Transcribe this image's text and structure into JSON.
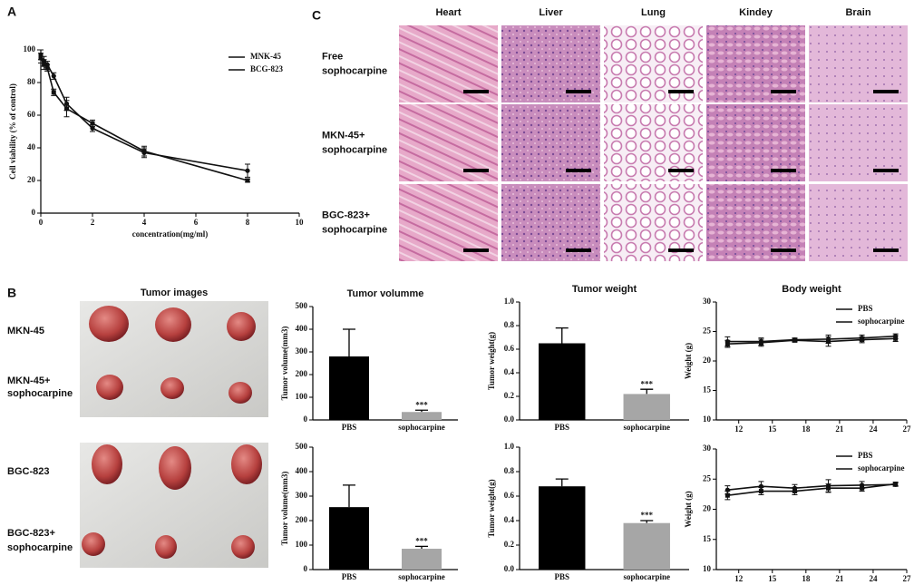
{
  "panel_labels": [
    "A",
    "B",
    "C"
  ],
  "tissue": {
    "columns": [
      "Heart",
      "Liver",
      "Lung",
      "Kindey",
      "Brain"
    ],
    "rows": [
      [
        "Free",
        "sophocarpine"
      ],
      [
        "MKN-45+",
        "sophocarpine"
      ],
      [
        "BGC-823+",
        "sophocarpine"
      ]
    ]
  },
  "tumor_images": {
    "title": "Tumor images",
    "rows": [
      [
        "MKN-45"
      ],
      [
        "MKN-45+",
        "sophocarpine"
      ],
      [
        "BGC-823"
      ],
      [
        "BGC-823+",
        "sophocarpine"
      ]
    ]
  },
  "chart_data": [
    {
      "type": "line",
      "xlabel": "concentration(mg/ml)",
      "ylabel": "Cell viability (% of control)",
      "x": [
        0,
        0.125,
        0.25,
        0.5,
        1,
        2,
        4,
        8
      ],
      "series": [
        {
          "name": "MNK-45",
          "color": "#111111",
          "marker": "circle",
          "values": [
            97,
            93,
            91,
            84,
            67,
            52,
            37,
            26
          ],
          "errors": [
            3,
            3,
            2,
            2,
            4,
            2,
            3,
            4
          ]
        },
        {
          "name": "BCG-823",
          "color": "#111111",
          "marker": "square",
          "values": [
            95,
            91,
            89,
            74,
            64,
            55,
            38,
            20
          ],
          "errors": [
            3,
            3,
            2,
            2,
            5,
            2,
            3,
            1
          ]
        }
      ],
      "xlim": [
        0,
        10
      ],
      "xticks": [
        0,
        2,
        4,
        6,
        8,
        10
      ],
      "ylim": [
        0,
        100
      ],
      "yticks": [
        0,
        20,
        40,
        60,
        80,
        100
      ],
      "legend": "upper right"
    },
    {
      "type": "bar",
      "title": "Tumor volumme",
      "ylabel": "Tumor volume(mm3)",
      "categories": [
        "PBS",
        "sophocarpine"
      ],
      "values": [
        280,
        35
      ],
      "errors": [
        120,
        8
      ],
      "colors": [
        "#000000",
        "#a6a6a6"
      ],
      "annotation": "***",
      "ylim": [
        0,
        500
      ],
      "yticks": [
        0,
        100,
        200,
        300,
        400,
        500
      ]
    },
    {
      "type": "bar",
      "title": "Tumor weight",
      "ylabel": "Tumor weight(g)",
      "categories": [
        "PBS",
        "sophocarpine"
      ],
      "values": [
        0.65,
        0.22
      ],
      "errors": [
        0.13,
        0.04
      ],
      "colors": [
        "#000000",
        "#a6a6a6"
      ],
      "annotation": "***",
      "ylim": [
        0,
        1
      ],
      "yticks": [
        {
          "value": 0,
          "label": "0.0"
        },
        0.2,
        0.4,
        0.6,
        0.8,
        {
          "value": 1,
          "label": "1.0"
        }
      ]
    },
    {
      "type": "line",
      "title": "Body weight",
      "ylabel": "Weight (g)",
      "x": [
        11,
        14,
        17,
        20,
        23,
        26
      ],
      "series": [
        {
          "name": "PBS",
          "color": "#111111",
          "marker": "circle",
          "values": [
            23.3,
            23.3,
            23.6,
            23.7,
            23.9,
            24.2
          ],
          "errors": [
            0.8,
            0.6,
            0.3,
            0.7,
            0.5,
            0.4
          ]
        },
        {
          "name": "sophocarpine",
          "color": "#111111",
          "marker": "square",
          "values": [
            22.9,
            23.1,
            23.5,
            23.3,
            23.6,
            23.8
          ],
          "errors": [
            0.6,
            0.6,
            0.3,
            0.8,
            0.5,
            0.5
          ]
        }
      ],
      "xlim": [
        10,
        27
      ],
      "xticks": [
        12,
        15,
        18,
        21,
        24,
        27
      ],
      "ylim": [
        10,
        30
      ],
      "yticks": [
        10,
        15,
        20,
        25,
        30
      ],
      "legend": "upper right"
    },
    {
      "type": "bar",
      "ylabel": "Tumor volume(mm3)",
      "categories": [
        "PBS",
        "sophocarpine"
      ],
      "values": [
        255,
        85
      ],
      "errors": [
        90,
        10
      ],
      "colors": [
        "#000000",
        "#a6a6a6"
      ],
      "annotation": "***",
      "ylim": [
        0,
        500
      ],
      "yticks": [
        0,
        100,
        200,
        300,
        400,
        500
      ]
    },
    {
      "type": "bar",
      "ylabel": "Tumor weight(g)",
      "categories": [
        "PBS",
        "sophocarpine"
      ],
      "values": [
        0.68,
        0.38
      ],
      "errors": [
        0.06,
        0.02
      ],
      "colors": [
        "#000000",
        "#a6a6a6"
      ],
      "annotation": "***",
      "ylim": [
        0,
        1
      ],
      "yticks": [
        {
          "value": 0,
          "label": "0.0"
        },
        0.2,
        0.4,
        0.6,
        0.8,
        {
          "value": 1,
          "label": "1.0"
        }
      ]
    },
    {
      "type": "line",
      "ylabel": "Weight (g)",
      "x": [
        11,
        14,
        17,
        20,
        23,
        26
      ],
      "series": [
        {
          "name": "PBS",
          "color": "#111111",
          "marker": "circle",
          "values": [
            23.2,
            23.8,
            23.5,
            23.9,
            24.0,
            24.1
          ],
          "errors": [
            0.7,
            0.8,
            0.6,
            1.0,
            0.6,
            0.3
          ]
        },
        {
          "name": "sophocarpine",
          "color": "#111111",
          "marker": "square",
          "values": [
            22.3,
            23.0,
            23.0,
            23.5,
            23.5,
            24.2
          ],
          "errors": [
            0.7,
            0.6,
            0.6,
            0.7,
            0.5,
            0.3
          ]
        }
      ],
      "xlim": [
        10,
        27
      ],
      "xticks": [
        12,
        15,
        18,
        21,
        24,
        27
      ],
      "ylim": [
        10,
        30
      ],
      "yticks": [
        10,
        15,
        20,
        25,
        30
      ],
      "legend": "upper right"
    }
  ]
}
